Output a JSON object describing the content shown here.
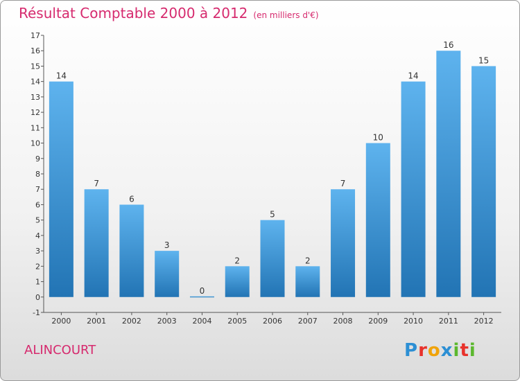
{
  "header": {
    "title": "Résultat Comptable 2000 à 2012",
    "unit": "(en milliers d'€)"
  },
  "footer": {
    "commune": "ALINCOURT",
    "logo_letters": [
      "P",
      "r",
      "o",
      "x",
      "i",
      "t",
      "i"
    ],
    "logo_colors": [
      "#2c8fd4",
      "#e8322b",
      "#f0a30a",
      "#2c8fd4",
      "#5cb82e",
      "#e8322b",
      "#5cb82e"
    ]
  },
  "colors": {
    "bar_top": "#5eb3ee",
    "bar_bottom": "#2274b4",
    "title": "#d62a6e"
  },
  "chart_data": {
    "type": "bar",
    "title": "Résultat Comptable 2000 à 2012",
    "subtitle": "(en milliers d'€)",
    "categories": [
      "2000",
      "2001",
      "2002",
      "2003",
      "2004",
      "2005",
      "2006",
      "2007",
      "2008",
      "2009",
      "2010",
      "2011",
      "2012"
    ],
    "values": [
      14,
      7,
      6,
      3,
      0,
      2,
      5,
      2,
      7,
      10,
      14,
      16,
      15
    ],
    "ylim": [
      -1,
      17
    ],
    "yticks": [
      -1,
      0,
      1,
      2,
      3,
      4,
      5,
      6,
      7,
      8,
      9,
      10,
      11,
      12,
      13,
      14,
      15,
      16,
      17
    ],
    "grid": false,
    "data_labels": true
  }
}
